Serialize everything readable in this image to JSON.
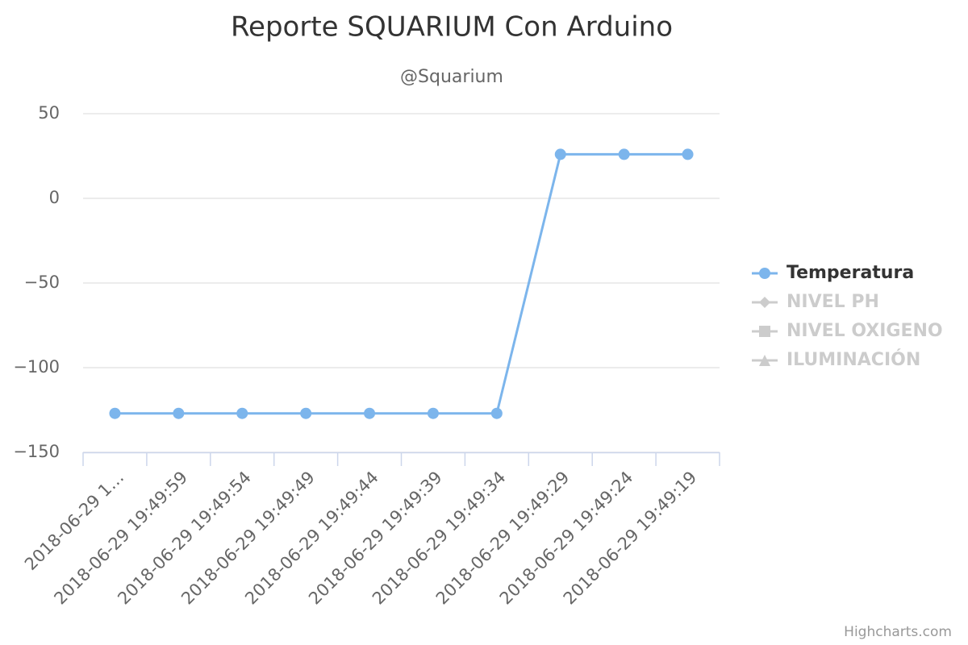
{
  "chart_data": {
    "type": "line",
    "title": "Reporte SQUARIUM Con Arduino",
    "subtitle": "@Squarium",
    "categories": [
      "2018-06-29 1…",
      "2018-06-29 19:49:59",
      "2018-06-29 19:49:54",
      "2018-06-29 19:49:49",
      "2018-06-29 19:49:44",
      "2018-06-29 19:49:39",
      "2018-06-29 19:49:34",
      "2018-06-29 19:49:29",
      "2018-06-29 19:49:24",
      "2018-06-29 19:49:19"
    ],
    "series": [
      {
        "name": "Temperatura",
        "color": "#7cb5ec",
        "marker": "circle",
        "visible": true,
        "values": [
          -127,
          -127,
          -127,
          -127,
          -127,
          -127,
          -127,
          26,
          26,
          26
        ]
      },
      {
        "name": "NIVEL PH",
        "color": "#cccccc",
        "marker": "diamond",
        "visible": false
      },
      {
        "name": "NIVEL OXIGENO",
        "color": "#cccccc",
        "marker": "square",
        "visible": false
      },
      {
        "name": "ILUMINACIÓN",
        "color": "#cccccc",
        "marker": "triangle",
        "visible": false
      }
    ],
    "ylim": [
      -150,
      50
    ],
    "yticks": [
      {
        "value": -150,
        "label": "−150"
      },
      {
        "value": -100,
        "label": "−100"
      },
      {
        "value": -50,
        "label": "−50"
      },
      0,
      50
    ],
    "grid": true,
    "legend": "right",
    "credits": "Highcharts.com"
  }
}
